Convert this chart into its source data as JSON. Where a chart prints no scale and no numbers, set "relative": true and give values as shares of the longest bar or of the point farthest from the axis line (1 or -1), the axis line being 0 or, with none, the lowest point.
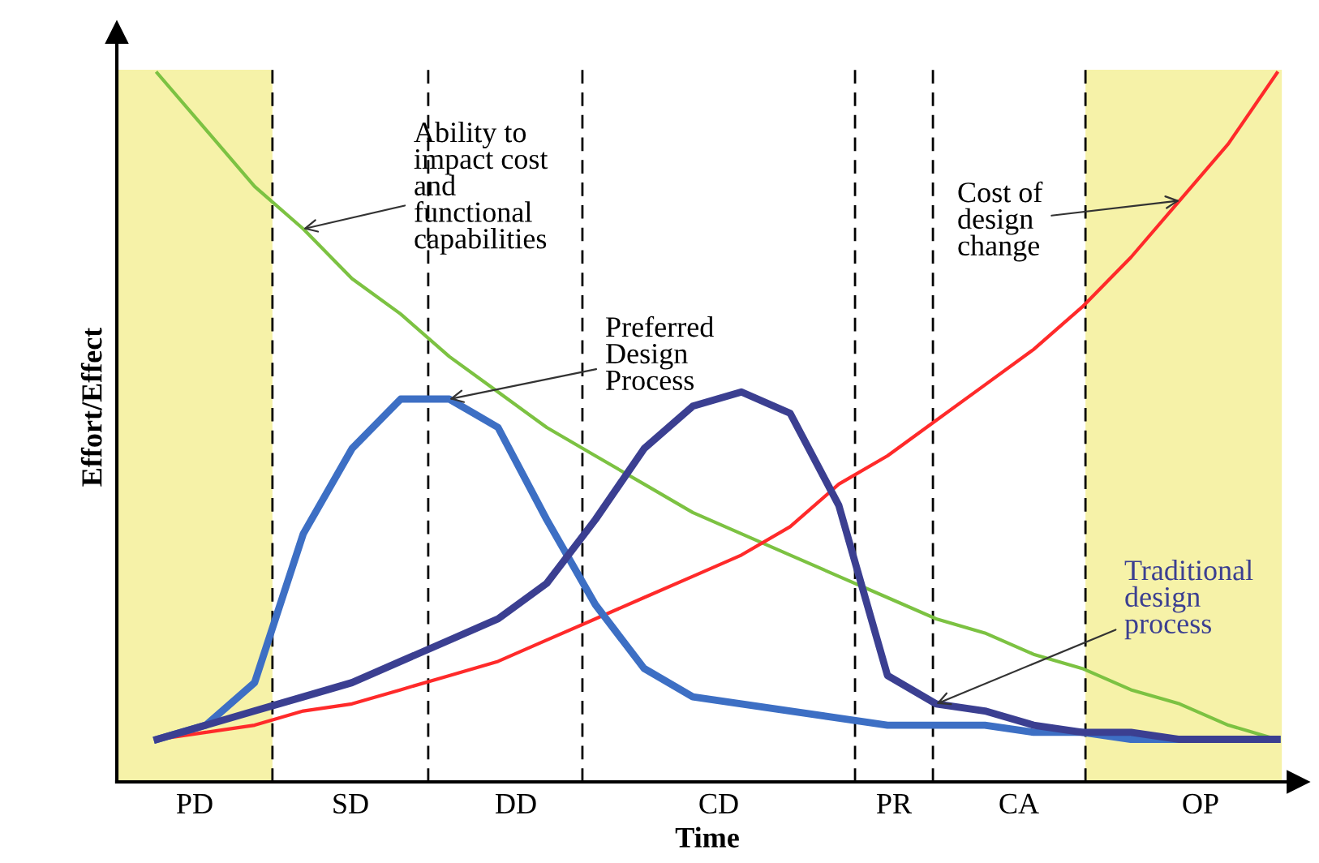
{
  "chart_data": {
    "type": "line",
    "relative": true,
    "xlabel": "Time",
    "ylabel": "Effort/Effect",
    "categories": [
      null,
      null,
      null,
      null,
      null,
      null,
      null,
      null,
      null,
      null,
      null,
      null,
      null,
      null,
      null,
      null,
      null,
      null,
      null,
      null,
      null,
      null,
      null,
      null
    ],
    "series": [
      {
        "name": "Ability to\nimpact cost\nand\nfunctional\ncapabilities",
        "color": "#7cc242",
        "values": [
          1.0,
          0.92,
          0.84,
          0.78,
          0.71,
          0.66,
          0.6,
          0.55,
          0.5,
          0.46,
          0.42,
          0.38,
          0.35,
          0.32,
          0.29,
          0.26,
          0.23,
          0.21,
          0.18,
          0.16,
          0.13,
          0.11,
          0.08,
          0.06
        ]
      },
      {
        "name": "Cost of\ndesign\nchange",
        "color": "#ff2a2a",
        "values": [
          0.06,
          0.07,
          0.08,
          0.1,
          0.11,
          0.13,
          0.15,
          0.17,
          0.2,
          0.23,
          0.26,
          0.29,
          0.32,
          0.36,
          0.42,
          0.46,
          0.51,
          0.56,
          0.61,
          0.67,
          0.74,
          0.82,
          0.9,
          1.0
        ]
      },
      {
        "name": "Preferred\nDesign\nProcess",
        "color": "#3d6fc4",
        "values": [
          0.06,
          0.08,
          0.14,
          0.35,
          0.47,
          0.54,
          0.54,
          0.5,
          0.37,
          0.25,
          0.16,
          0.12,
          0.11,
          0.1,
          0.09,
          0.08,
          0.08,
          0.08,
          0.07,
          0.07,
          0.06,
          0.06,
          0.06,
          0.06
        ]
      },
      {
        "name": "Traditional\ndesign\nprocess",
        "color": "#3b3f91",
        "values": [
          0.06,
          0.08,
          0.1,
          0.12,
          0.14,
          0.17,
          0.2,
          0.23,
          0.28,
          0.37,
          0.47,
          0.53,
          0.55,
          0.52,
          0.39,
          0.15,
          0.11,
          0.1,
          0.08,
          0.07,
          0.07,
          0.06,
          0.06,
          0.06
        ]
      }
    ],
    "annotations": [
      "PD",
      "SD",
      "DD",
      "CD",
      "PR",
      "CA",
      "OP"
    ]
  }
}
